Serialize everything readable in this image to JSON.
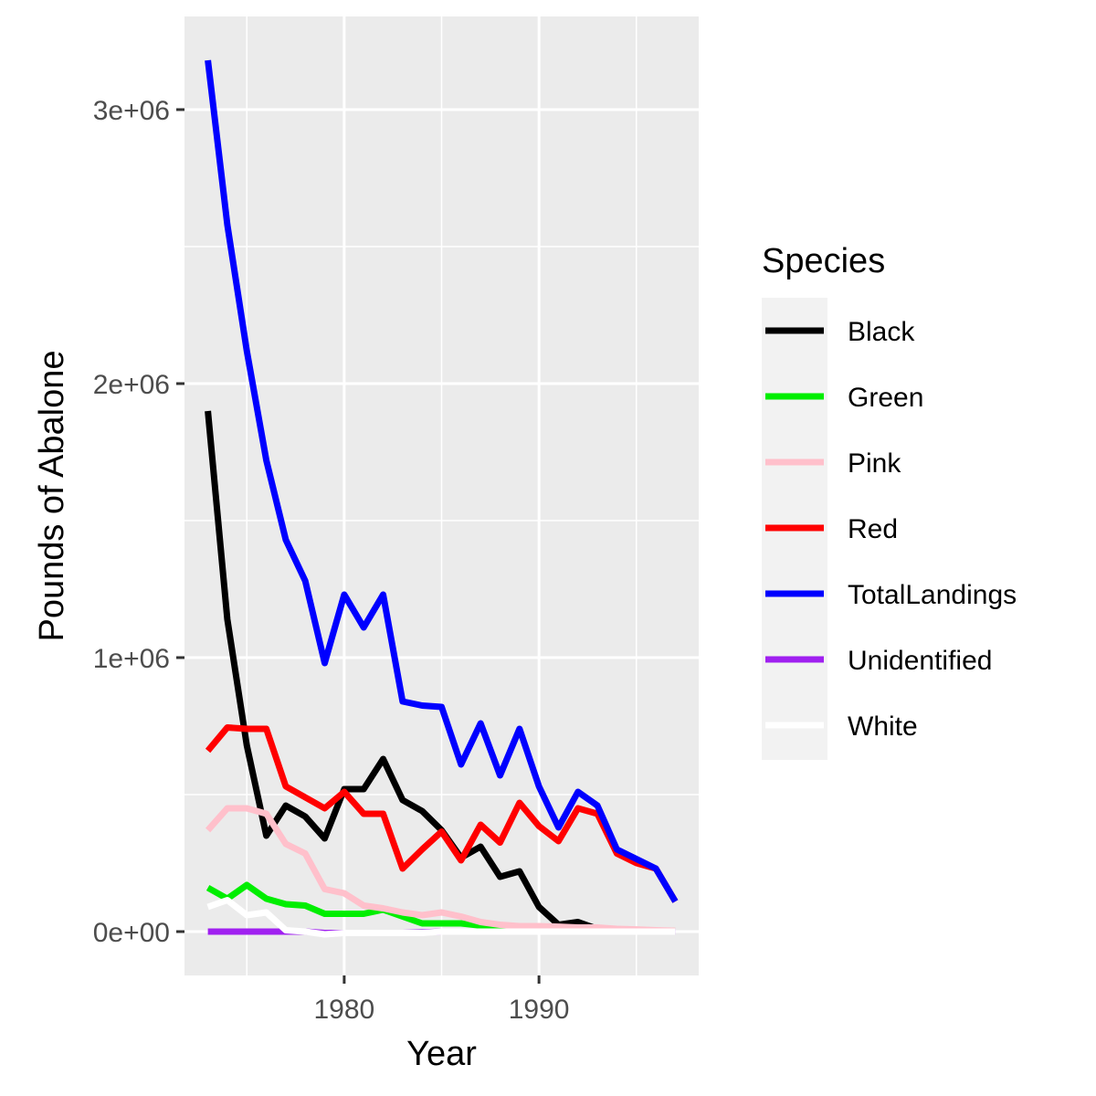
{
  "chart_data": {
    "type": "line",
    "title": "",
    "xlabel": "Year",
    "ylabel": "Pounds of Abalone",
    "xlim": [
      1971.8,
      1998.2
    ],
    "ylim": [
      -160000,
      3340000
    ],
    "x_ticks": [
      1980,
      1990
    ],
    "x_minor_ticks": [
      1975,
      1985,
      1995
    ],
    "y_ticks": [
      0,
      1000000,
      2000000,
      3000000
    ],
    "y_tick_labels": [
      "0e+00",
      "1e+06",
      "2e+06",
      "3e+06"
    ],
    "y_minor_ticks": [
      500000,
      1500000,
      2500000
    ],
    "grid": true,
    "legend": {
      "title": "Species",
      "position": "right"
    },
    "x": [
      1973,
      1974,
      1975,
      1976,
      1977,
      1978,
      1979,
      1980,
      1981,
      1982,
      1983,
      1984,
      1985,
      1986,
      1987,
      1988,
      1989,
      1990,
      1991,
      1992,
      1993,
      1994,
      1995,
      1996,
      1997
    ],
    "series": [
      {
        "name": "Black",
        "color": "#000000",
        "values": [
          1900000,
          1140000,
          680000,
          350000,
          460000,
          420000,
          340000,
          520000,
          520000,
          630000,
          480000,
          440000,
          370000,
          270000,
          310000,
          200000,
          220000,
          90000,
          25000,
          35000,
          10000,
          5000,
          3000,
          2000,
          1000
        ]
      },
      {
        "name": "Green",
        "color": "#00ee00",
        "values": [
          160000,
          120000,
          170000,
          120000,
          100000,
          95000,
          65000,
          65000,
          65000,
          80000,
          55000,
          30000,
          30000,
          30000,
          22000,
          18000,
          15000,
          12000,
          10000,
          8000,
          6000,
          5000,
          4000,
          3000,
          2000
        ]
      },
      {
        "name": "Pink",
        "color": "#ffc0cb",
        "values": [
          370000,
          450000,
          450000,
          430000,
          320000,
          285000,
          155000,
          140000,
          95000,
          85000,
          70000,
          60000,
          70000,
          55000,
          35000,
          25000,
          20000,
          20000,
          18000,
          15000,
          15000,
          10000,
          8000,
          5000,
          3000
        ]
      },
      {
        "name": "Red",
        "color": "#ff0000",
        "values": [
          660000,
          745000,
          740000,
          740000,
          530000,
          490000,
          450000,
          510000,
          430000,
          430000,
          230000,
          300000,
          365000,
          260000,
          390000,
          325000,
          470000,
          385000,
          330000,
          450000,
          430000,
          285000,
          250000,
          230000,
          110000
        ]
      },
      {
        "name": "TotalLandings",
        "color": "#0000ff",
        "values": [
          3180000,
          2580000,
          2120000,
          1720000,
          1430000,
          1280000,
          980000,
          1230000,
          1110000,
          1230000,
          840000,
          825000,
          820000,
          610000,
          760000,
          570000,
          740000,
          530000,
          380000,
          510000,
          460000,
          300000,
          265000,
          230000,
          110000
        ]
      },
      {
        "name": "Unidentified",
        "color": "#a020f0",
        "values": [
          0,
          0,
          0,
          0,
          0,
          0,
          -5000,
          -5000,
          -5000,
          -5000,
          -5000,
          -3000,
          0,
          0,
          0,
          0,
          0,
          0,
          0,
          0,
          0,
          0,
          0,
          0,
          0
        ]
      },
      {
        "name": "White",
        "color": "#ffffff",
        "values": [
          90000,
          115000,
          60000,
          70000,
          5000,
          0,
          -10000,
          -5000,
          -5000,
          -5000,
          -5000,
          -5000,
          0,
          0,
          0,
          0,
          0,
          0,
          0,
          0,
          0,
          0,
          0,
          0,
          0
        ]
      }
    ]
  }
}
